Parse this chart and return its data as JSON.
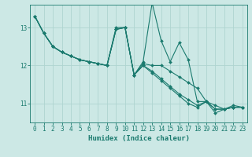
{
  "xlabel": "Humidex (Indice chaleur)",
  "ylabel": "",
  "bg_color": "#cce8e5",
  "line_color": "#1a7a6e",
  "grid_color": "#afd4d0",
  "xlim": [
    -0.5,
    23.5
  ],
  "ylim": [
    10.5,
    13.6
  ],
  "yticks": [
    11,
    12,
    13
  ],
  "xticks": [
    0,
    1,
    2,
    3,
    4,
    5,
    6,
    7,
    8,
    9,
    10,
    11,
    12,
    13,
    14,
    15,
    16,
    17,
    18,
    19,
    20,
    21,
    22,
    23
  ],
  "lines": [
    {
      "x": [
        0,
        1,
        2,
        3,
        4,
        5,
        6,
        7,
        8,
        9,
        10,
        11,
        12,
        13,
        14,
        15,
        16,
        17,
        18,
        19,
        20,
        21,
        22,
        23
      ],
      "y": [
        13.3,
        12.85,
        12.5,
        12.35,
        12.25,
        12.15,
        12.1,
        12.05,
        12.0,
        13.0,
        13.0,
        11.75,
        12.1,
        13.65,
        12.65,
        12.1,
        12.6,
        12.15,
        11.05,
        11.05,
        10.75,
        10.85,
        10.95,
        10.9
      ]
    },
    {
      "x": [
        0,
        1,
        2,
        3,
        4,
        5,
        6,
        7,
        8,
        9,
        10,
        11,
        12,
        13,
        14,
        15,
        16,
        17,
        18,
        19,
        20,
        21,
        22,
        23
      ],
      "y": [
        13.3,
        12.85,
        12.5,
        12.35,
        12.25,
        12.15,
        12.1,
        12.05,
        12.0,
        12.95,
        13.0,
        11.75,
        12.05,
        12.0,
        12.0,
        11.85,
        11.7,
        11.55,
        11.4,
        11.05,
        10.95,
        10.85,
        10.9,
        10.9
      ]
    },
    {
      "x": [
        0,
        1,
        2,
        3,
        4,
        5,
        6,
        7,
        8,
        9,
        10,
        11,
        12,
        13,
        14,
        15,
        16,
        17,
        18,
        19,
        20,
        21,
        22,
        23
      ],
      "y": [
        13.3,
        12.85,
        12.5,
        12.35,
        12.25,
        12.15,
        12.1,
        12.05,
        12.0,
        12.95,
        13.0,
        11.75,
        12.0,
        11.85,
        11.65,
        11.45,
        11.25,
        11.1,
        10.95,
        11.05,
        10.85,
        10.85,
        10.9,
        10.9
      ]
    },
    {
      "x": [
        0,
        1,
        2,
        3,
        4,
        5,
        6,
        7,
        8,
        9,
        10,
        11,
        12,
        13,
        14,
        15,
        16,
        17,
        18,
        19,
        20,
        21,
        22,
        23
      ],
      "y": [
        13.3,
        12.85,
        12.5,
        12.35,
        12.25,
        12.15,
        12.1,
        12.05,
        12.0,
        12.95,
        13.0,
        11.75,
        12.0,
        11.8,
        11.6,
        11.4,
        11.2,
        11.0,
        10.9,
        11.05,
        10.85,
        10.85,
        10.9,
        10.9
      ]
    }
  ]
}
